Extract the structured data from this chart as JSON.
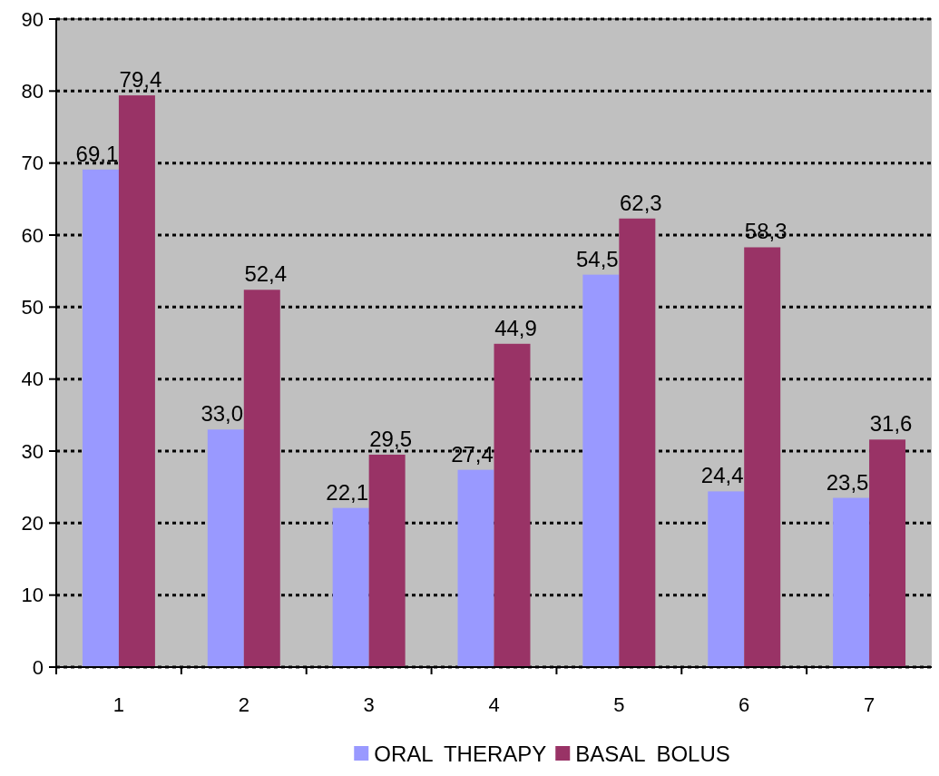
{
  "chart_data": {
    "type": "bar",
    "categories": [
      "1",
      "2",
      "3",
      "4",
      "5",
      "6",
      "7"
    ],
    "series": [
      {
        "name": "ORAL THERAPY",
        "color": "#9999ff",
        "values": [
          69.1,
          33.0,
          22.1,
          27.4,
          54.5,
          24.4,
          23.5
        ],
        "value_labels": [
          "69,1",
          "33,0",
          "22,1",
          "27,4",
          "54,5",
          "24,4",
          "23,5"
        ]
      },
      {
        "name": "BASAL BOLUS",
        "color": "#993366",
        "values": [
          79.4,
          52.4,
          29.5,
          44.9,
          62.3,
          58.3,
          31.6
        ],
        "value_labels": [
          "79,4",
          "52,4",
          "29,5",
          "44,9",
          "62,3",
          "58,3",
          "31,6"
        ]
      }
    ],
    "ylim": [
      0,
      90
    ],
    "yticks": [
      0,
      10,
      20,
      30,
      40,
      50,
      60,
      70,
      80,
      90
    ],
    "grid": "y",
    "legend": "bottom"
  }
}
